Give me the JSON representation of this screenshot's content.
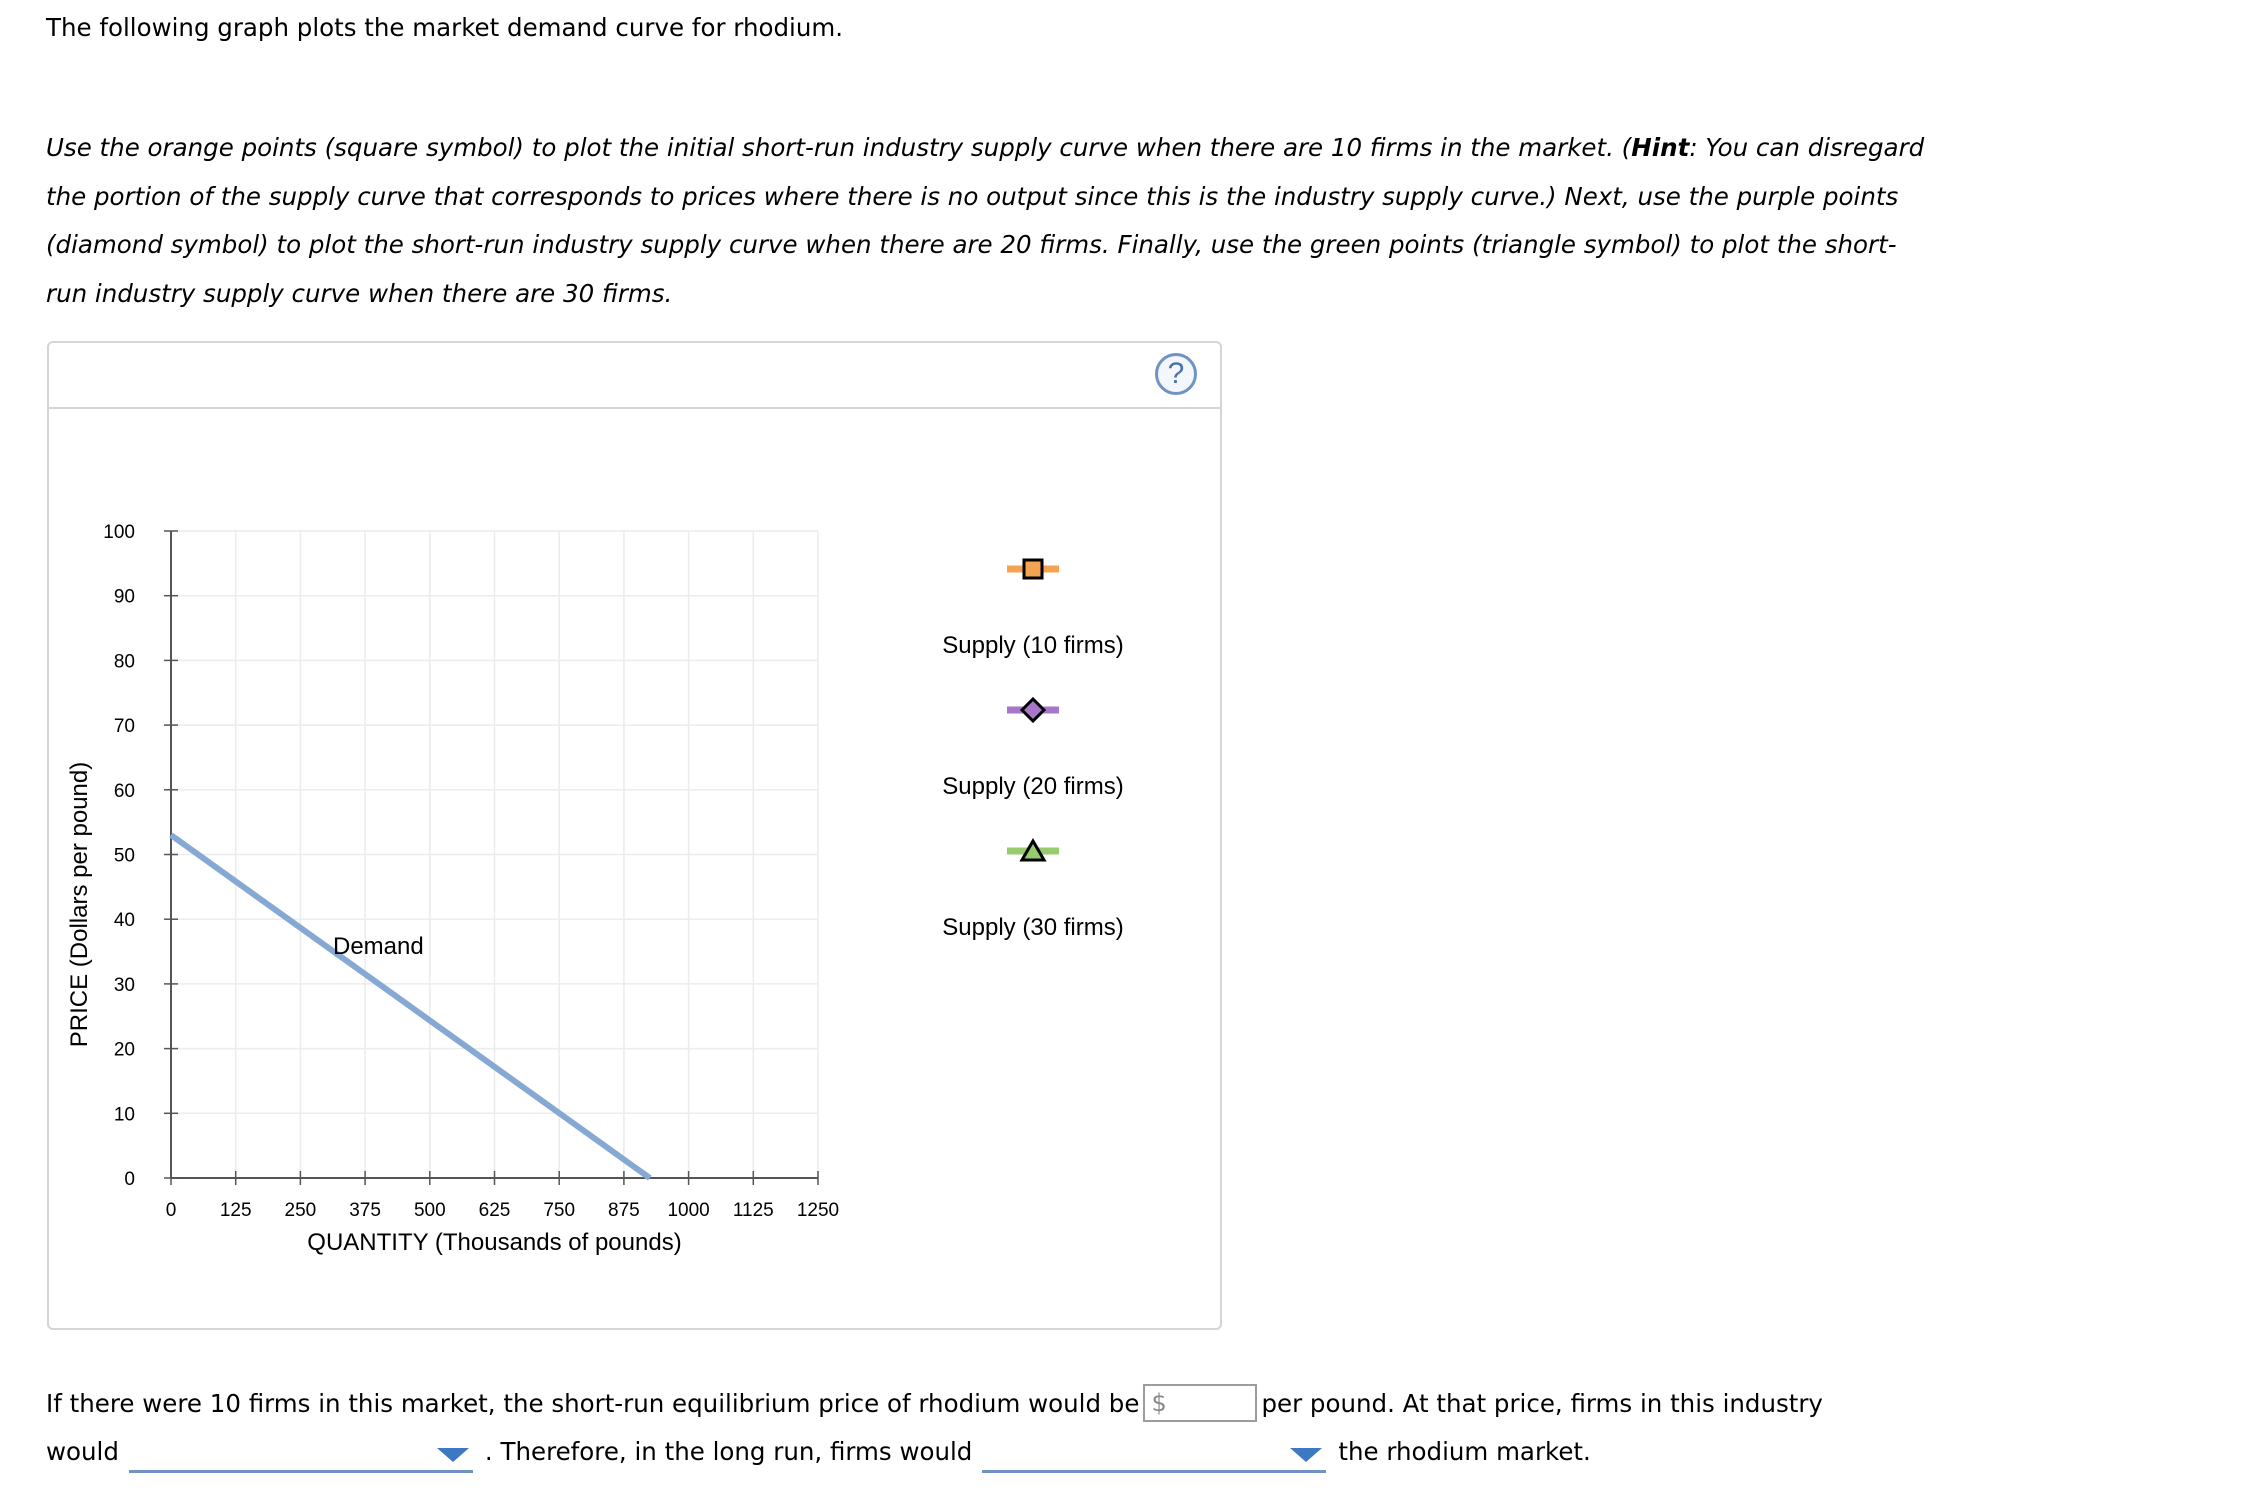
{
  "intro_text": "The following graph plots the market demand curve for rhodium.",
  "instructions": {
    "part1": "Use the orange points (square symbol) to plot the initial short-run industry supply curve when there are 10 firms in the market. (",
    "hint_label": "Hint",
    "part2": ": You can disregard the portion of the supply curve that corresponds to prices where there is no output since this is the industry supply curve.) Next, use the purple points (diamond symbol) to plot the short-run industry supply curve when there are 20 firms. Finally, use the green points (triangle symbol) to plot the short-run industry supply curve when there are 30 firms."
  },
  "help_button": {
    "label": "?",
    "icon": "help-circle-icon"
  },
  "chart_data": {
    "type": "line",
    "xlabel": "QUANTITY (Thousands of pounds)",
    "ylabel": "PRICE (Dollars per pound)",
    "xlim": [
      0,
      1250
    ],
    "ylim": [
      0,
      100
    ],
    "x_ticks": [
      0,
      125,
      250,
      375,
      500,
      625,
      750,
      875,
      1000,
      1125,
      1250
    ],
    "y_ticks": [
      0,
      10,
      20,
      30,
      40,
      50,
      60,
      70,
      80,
      90,
      100
    ],
    "grid": true,
    "series": [
      {
        "name": "Demand",
        "color": "#86a9d3",
        "points": [
          [
            0,
            53
          ],
          [
            925,
            0
          ]
        ]
      }
    ],
    "legend": [
      {
        "name": "Supply (10 firms)",
        "color": "#f4a451",
        "marker": "square"
      },
      {
        "name": "Supply (20 firms)",
        "color": "#a776c9",
        "marker": "diamond"
      },
      {
        "name": "Supply (30 firms)",
        "color": "#96cc6c",
        "marker": "triangle"
      }
    ]
  },
  "question": {
    "line1_before": "If there were 10 firms in this market, the short-run equilibrium price of rhodium would be",
    "currency_symbol": "$",
    "price_value": "",
    "line1_after": "per pound. At that price, firms in this industry",
    "line2_before": "would",
    "dropdown1_value": "",
    "line2_middle": ". Therefore, in the long run, firms would",
    "dropdown2_value": "",
    "line2_after": "the rhodium market."
  }
}
